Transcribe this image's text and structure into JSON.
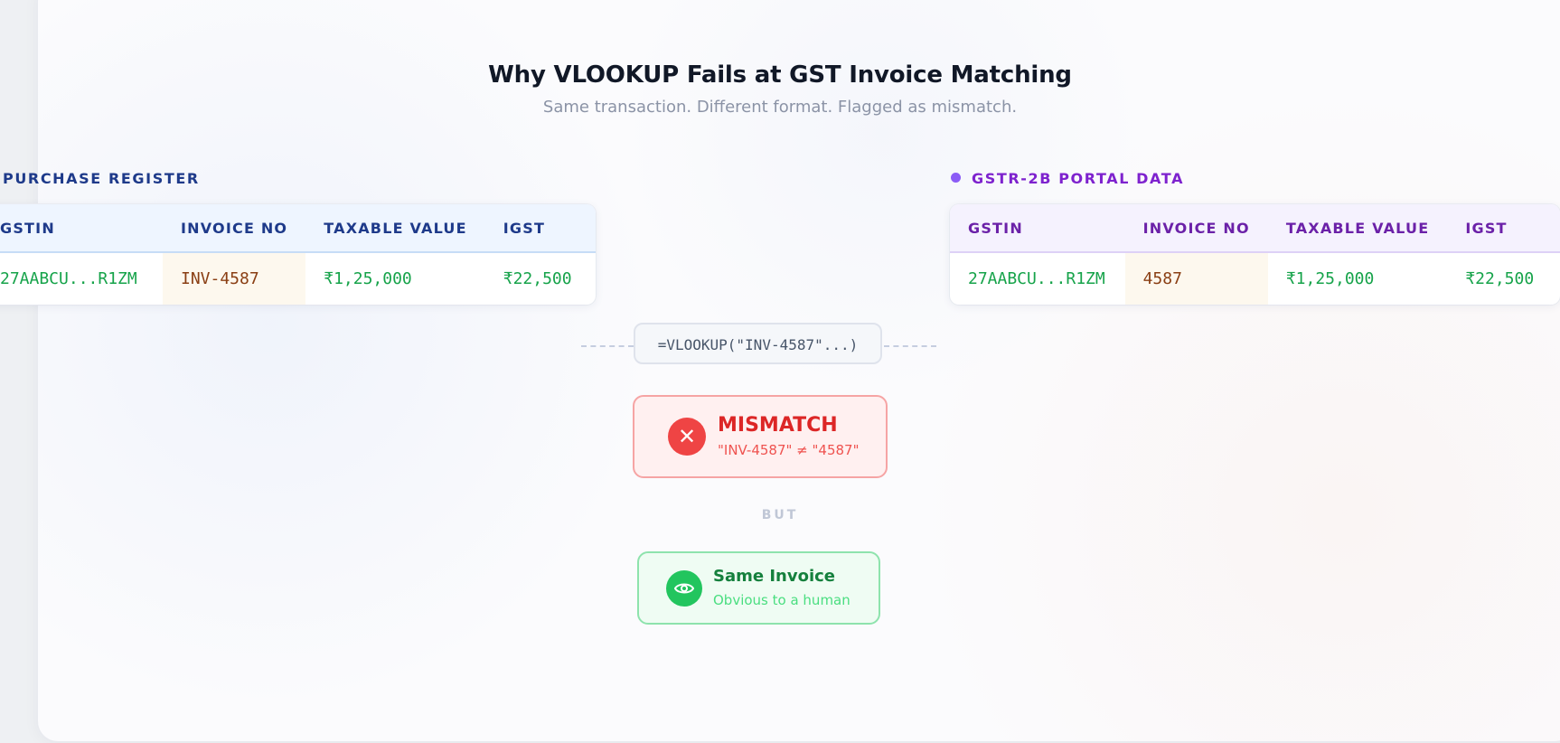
{
  "header": {
    "title": "Why VLOOKUP Fails at GST Invoice Matching",
    "subtitle": "Same transaction. Different format. Flagged as mismatch."
  },
  "purchase_register": {
    "label": "PURCHASE REGISTER",
    "columns": [
      "GSTIN",
      "INVOICE NO",
      "TAXABLE VALUE",
      "IGST"
    ],
    "row": [
      "27AABCU...R1ZM",
      "INV-4587",
      "₹1,25,000",
      "₹22,500"
    ]
  },
  "gstr2b": {
    "label": "GSTR-2B PORTAL DATA",
    "columns": [
      "GSTIN",
      "INVOICE NO",
      "TAXABLE VALUE",
      "IGST"
    ],
    "row": [
      "27AABCU...R1ZM",
      "4587",
      "₹1,25,000",
      "₹22,500"
    ]
  },
  "formula": "=VLOOKUP(\"INV-4587\"...)",
  "mismatch": {
    "icon": "close-icon",
    "title": "MISMATCH",
    "detail": "\"INV-4587\" ≠ \"4587\""
  },
  "divider": "BUT",
  "same_invoice": {
    "icon": "eye-icon",
    "title": "Same Invoice",
    "detail": "Obvious to a human"
  },
  "colors": {
    "register_accent": "#1e3a8a",
    "portal_accent": "#7e22ce",
    "value_green": "#16a34a",
    "mismatch_red": "#dc2626",
    "match_green": "#15803d"
  }
}
